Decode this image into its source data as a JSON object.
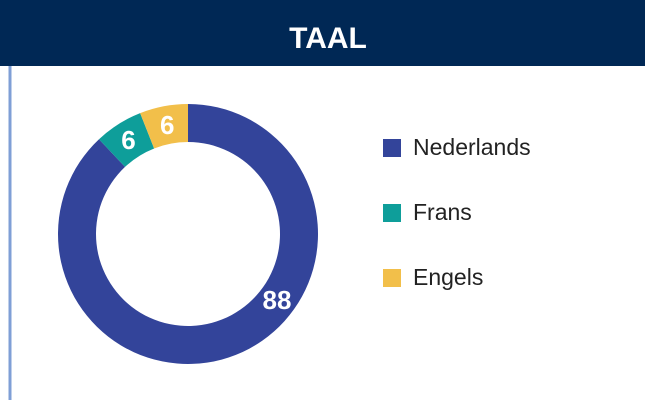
{
  "chart_data": {
    "type": "donut",
    "title": "TAAL",
    "categories": [
      "Nederlands",
      "Frans",
      "Engels"
    ],
    "values": [
      88,
      6,
      6
    ],
    "colors": [
      "#33449a",
      "#0e9e9a",
      "#f2bf4a"
    ],
    "legend": "right"
  }
}
